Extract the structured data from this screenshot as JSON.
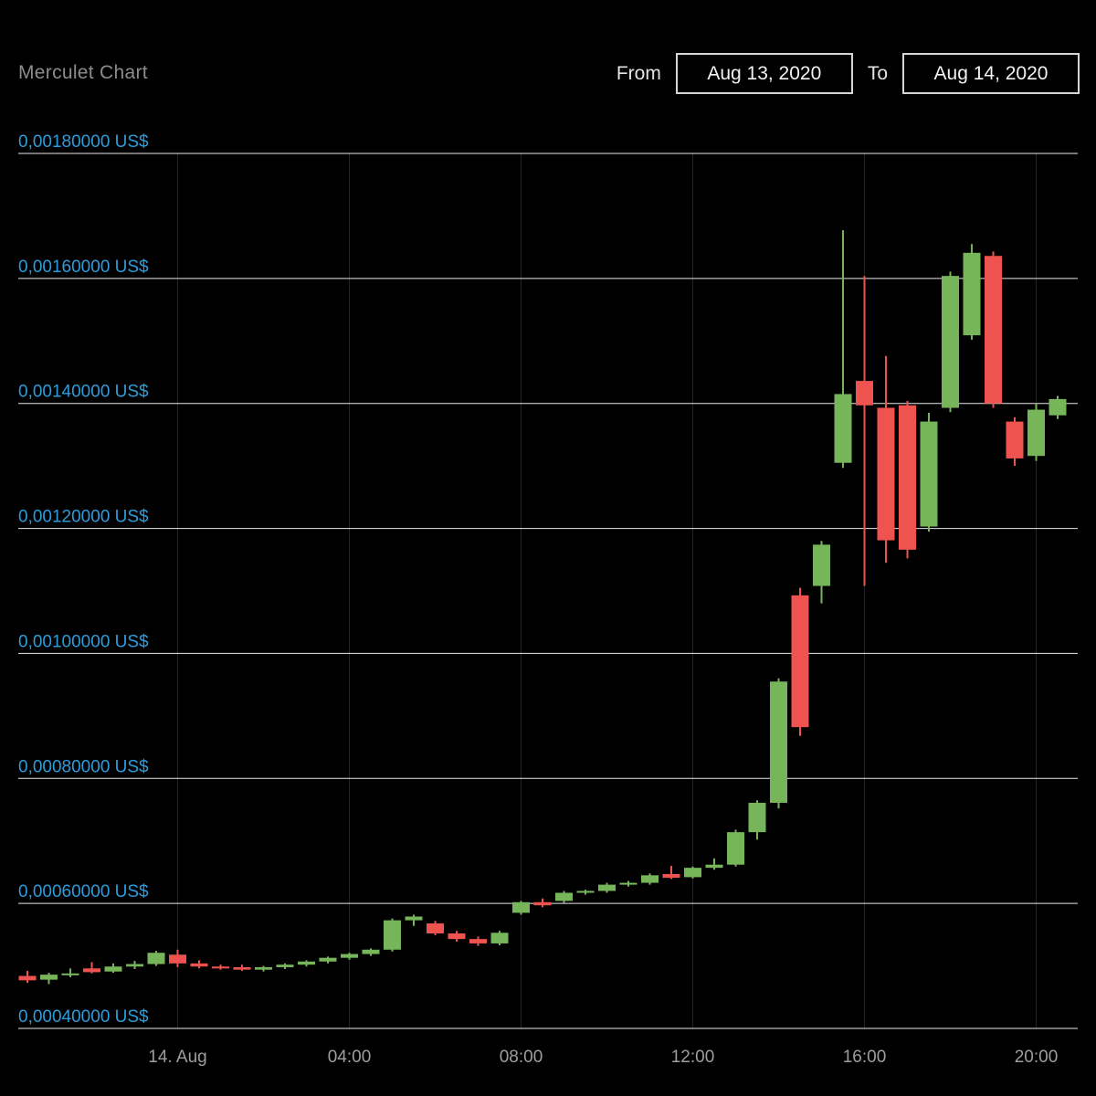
{
  "header": {
    "title": "Merculet Chart",
    "from_label": "From",
    "to_label": "To",
    "from_value": "Aug 13, 2020",
    "to_value": "Aug 14, 2020"
  },
  "colors": {
    "background": "#000000",
    "up": "#77b55b",
    "down": "#ef5350",
    "grid": "#e8e8e8",
    "vgrid": "#ffffff",
    "y_label": "#2d9cdb",
    "x_label": "#9e9e9e",
    "title": "#8c8c8c"
  },
  "chart_data": {
    "type": "candlestick",
    "title": "Merculet Chart",
    "currency": "US$",
    "interval": "30m",
    "date_range": {
      "from": "Aug 13, 2020",
      "to": "Aug 14, 2020"
    },
    "ylim": [
      0.0004,
      0.0018
    ],
    "grid": true,
    "y_axis": {
      "labels": [
        "0,00180000 US$",
        "0,00160000 US$",
        "0,00140000 US$",
        "0,00120000 US$",
        "0,00100000 US$",
        "0,00080000 US$",
        "0,00060000 US$",
        "0,00040000 US$"
      ],
      "values": [
        0.0018,
        0.0016,
        0.0014,
        0.0012,
        0.001,
        0.0008,
        0.0006,
        0.0004
      ]
    },
    "x_axis": {
      "ticks": [
        {
          "index": 7,
          "label": "14. Aug"
        },
        {
          "index": 15,
          "label": "04:00"
        },
        {
          "index": 23,
          "label": "08:00"
        },
        {
          "index": 31,
          "label": "12:00"
        },
        {
          "index": 39,
          "label": "16:00"
        },
        {
          "index": 47,
          "label": "20:00"
        }
      ]
    },
    "candles": [
      {
        "time": "20:30",
        "open": 0.000484,
        "high": 0.000492,
        "low": 0.000473,
        "close": 0.000477
      },
      {
        "time": "21:00",
        "open": 0.000478,
        "high": 0.000489,
        "low": 0.000471,
        "close": 0.000486
      },
      {
        "time": "21:30",
        "open": 0.000485,
        "high": 0.000496,
        "low": 0.000482,
        "close": 0.000488
      },
      {
        "time": "22:00",
        "open": 0.000496,
        "high": 0.000506,
        "low": 0.000488,
        "close": 0.00049
      },
      {
        "time": "22:30",
        "open": 0.000491,
        "high": 0.000504,
        "low": 0.000489,
        "close": 0.000499
      },
      {
        "time": "23:00",
        "open": 0.000499,
        "high": 0.000508,
        "low": 0.000495,
        "close": 0.000503
      },
      {
        "time": "23:30",
        "open": 0.000503,
        "high": 0.000524,
        "low": 0.0005,
        "close": 0.000521
      },
      {
        "time": "00:00",
        "open": 0.000518,
        "high": 0.000526,
        "low": 0.000498,
        "close": 0.000504
      },
      {
        "time": "00:30",
        "open": 0.000504,
        "high": 0.000509,
        "low": 0.000496,
        "close": 0.000499
      },
      {
        "time": "01:00",
        "open": 0.000499,
        "high": 0.000502,
        "low": 0.000494,
        "close": 0.000496
      },
      {
        "time": "01:30",
        "open": 0.000498,
        "high": 0.000502,
        "low": 0.000492,
        "close": 0.000494
      },
      {
        "time": "02:00",
        "open": 0.000494,
        "high": 0.0005,
        "low": 0.000491,
        "close": 0.000498
      },
      {
        "time": "02:30",
        "open": 0.000498,
        "high": 0.000504,
        "low": 0.000495,
        "close": 0.000502
      },
      {
        "time": "03:00",
        "open": 0.000502,
        "high": 0.000509,
        "low": 0.000499,
        "close": 0.000507
      },
      {
        "time": "03:30",
        "open": 0.000507,
        "high": 0.000515,
        "low": 0.000504,
        "close": 0.000513
      },
      {
        "time": "04:00",
        "open": 0.000513,
        "high": 0.000521,
        "low": 0.00051,
        "close": 0.000519
      },
      {
        "time": "04:30",
        "open": 0.000519,
        "high": 0.000528,
        "low": 0.000516,
        "close": 0.000526
      },
      {
        "time": "05:00",
        "open": 0.000526,
        "high": 0.000576,
        "low": 0.000523,
        "close": 0.000573
      },
      {
        "time": "05:30",
        "open": 0.000573,
        "high": 0.000582,
        "low": 0.000564,
        "close": 0.000579
      },
      {
        "time": "06:00",
        "open": 0.000568,
        "high": 0.000572,
        "low": 0.000549,
        "close": 0.000552
      },
      {
        "time": "06:30",
        "open": 0.000552,
        "high": 0.000556,
        "low": 0.000539,
        "close": 0.000543
      },
      {
        "time": "07:00",
        "open": 0.000543,
        "high": 0.000547,
        "low": 0.000532,
        "close": 0.000536
      },
      {
        "time": "07:30",
        "open": 0.000536,
        "high": 0.000556,
        "low": 0.000533,
        "close": 0.000553
      },
      {
        "time": "08:00",
        "open": 0.000585,
        "high": 0.000604,
        "low": 0.000582,
        "close": 0.000602
      },
      {
        "time": "08:30",
        "open": 0.000602,
        "high": 0.000608,
        "low": 0.000594,
        "close": 0.000597
      },
      {
        "time": "09:00",
        "open": 0.000604,
        "high": 0.00062,
        "low": 0.000601,
        "close": 0.000617
      },
      {
        "time": "09:30",
        "open": 0.000617,
        "high": 0.000622,
        "low": 0.000614,
        "close": 0.00062
      },
      {
        "time": "10:00",
        "open": 0.00062,
        "high": 0.000633,
        "low": 0.000617,
        "close": 0.00063
      },
      {
        "time": "10:30",
        "open": 0.00063,
        "high": 0.000636,
        "low": 0.000627,
        "close": 0.000633
      },
      {
        "time": "11:00",
        "open": 0.000633,
        "high": 0.000648,
        "low": 0.00063,
        "close": 0.000645
      },
      {
        "time": "11:30",
        "open": 0.000647,
        "high": 0.00066,
        "low": 0.000639,
        "close": 0.000641
      },
      {
        "time": "12:00",
        "open": 0.000642,
        "high": 0.000659,
        "low": 0.00064,
        "close": 0.000657
      },
      {
        "time": "12:30",
        "open": 0.000657,
        "high": 0.000672,
        "low": 0.000654,
        "close": 0.000662
      },
      {
        "time": "13:00",
        "open": 0.000662,
        "high": 0.000718,
        "low": 0.000659,
        "close": 0.000714
      },
      {
        "time": "13:30",
        "open": 0.000714,
        "high": 0.000765,
        "low": 0.000702,
        "close": 0.000761
      },
      {
        "time": "14:00",
        "open": 0.000761,
        "high": 0.00096,
        "low": 0.000752,
        "close": 0.000955
      },
      {
        "time": "14:30",
        "open": 0.001093,
        "high": 0.001105,
        "low": 0.000868,
        "close": 0.000882
      },
      {
        "time": "15:00",
        "open": 0.001108,
        "high": 0.00118,
        "low": 0.00108,
        "close": 0.001174
      },
      {
        "time": "15:30",
        "open": 0.001305,
        "high": 0.001677,
        "low": 0.001297,
        "close": 0.001415
      },
      {
        "time": "16:00",
        "open": 0.001436,
        "high": 0.001604,
        "low": 0.001108,
        "close": 0.001397
      },
      {
        "time": "16:30",
        "open": 0.001393,
        "high": 0.001476,
        "low": 0.001145,
        "close": 0.001181
      },
      {
        "time": "17:00",
        "open": 0.001397,
        "high": 0.001404,
        "low": 0.001152,
        "close": 0.001166
      },
      {
        "time": "17:30",
        "open": 0.001203,
        "high": 0.001385,
        "low": 0.001195,
        "close": 0.001371
      },
      {
        "time": "18:00",
        "open": 0.001393,
        "high": 0.001611,
        "low": 0.001386,
        "close": 0.001604
      },
      {
        "time": "18:30",
        "open": 0.001509,
        "high": 0.001655,
        "low": 0.001502,
        "close": 0.001641
      },
      {
        "time": "19:00",
        "open": 0.001636,
        "high": 0.001643,
        "low": 0.001393,
        "close": 0.0014
      },
      {
        "time": "19:30",
        "open": 0.001371,
        "high": 0.001378,
        "low": 0.0013,
        "close": 0.001312
      },
      {
        "time": "20:00",
        "open": 0.001316,
        "high": 0.0014,
        "low": 0.001308,
        "close": 0.00139
      },
      {
        "time": "20:30",
        "open": 0.001381,
        "high": 0.001412,
        "low": 0.001375,
        "close": 0.001407
      }
    ]
  }
}
